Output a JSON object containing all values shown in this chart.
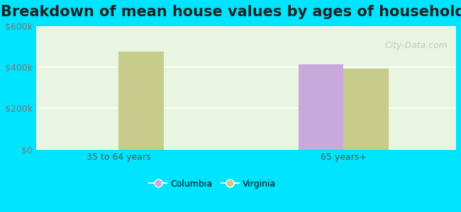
{
  "title": "Breakdown of mean house values by ages of householders",
  "categories": [
    "35 to 64 years",
    "65 years+"
  ],
  "series": [
    {
      "name": "Columbia",
      "values": [
        null,
        415000
      ],
      "color": "#c9a8dc"
    },
    {
      "name": "Virginia",
      "values": [
        475000,
        393000
      ],
      "color": "#c8cc8a"
    }
  ],
  "ylim": [
    0,
    600000
  ],
  "yticks": [
    0,
    200000,
    400000,
    600000
  ],
  "ytick_labels": [
    "$0",
    "$200k",
    "$400k",
    "$600k"
  ],
  "background_outer": "#00e5ff",
  "background_inner": "#e8f5e0",
  "title_fontsize": 15,
  "legend_items": [
    {
      "label": "Columbia",
      "color": "#c9a8dc"
    },
    {
      "label": "Virginia",
      "color": "#c8cc8a"
    }
  ],
  "bar_width": 0.3,
  "group_positions": [
    0.75,
    2.25
  ],
  "watermark": "City-Data.com"
}
